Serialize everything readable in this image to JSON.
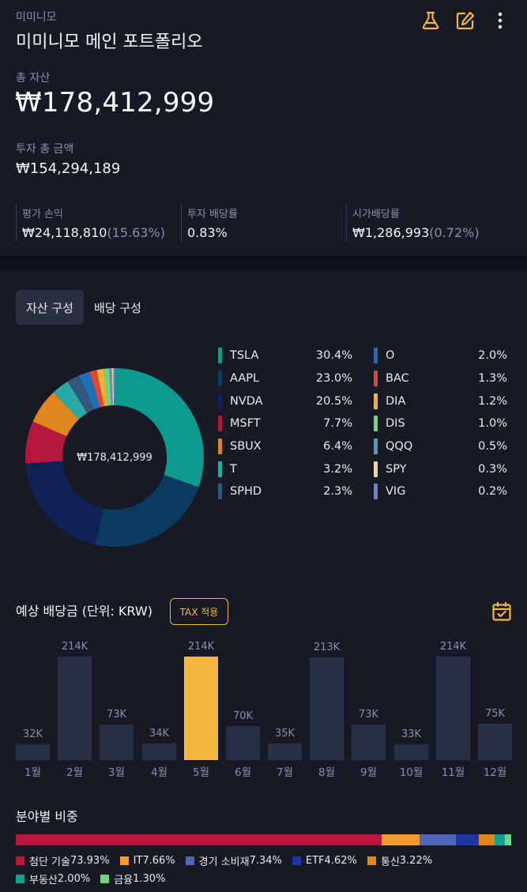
{
  "header": {
    "app_name": "미미니모",
    "title": "미미니모 메인 포트폴리오",
    "icons": [
      "flask-icon",
      "edit-icon",
      "more-vertical-icon"
    ]
  },
  "summary": {
    "total_label": "총 자산",
    "total_value": "₩178,412,999",
    "invested_label": "투자 총 금액",
    "invested_value": "₩154,294,189",
    "stats": [
      {
        "label": "평가 손익",
        "value": "₩24,118,810",
        "sub": "(15.63%)"
      },
      {
        "label": "투자 배당률",
        "value": "0.83%",
        "sub": ""
      },
      {
        "label": "시가배당률",
        "value": "₩1,286,993",
        "sub": "(0.72%)"
      }
    ]
  },
  "tabs": [
    {
      "label": "자산 구성",
      "active": true
    },
    {
      "label": "배당 구성",
      "active": false
    }
  ],
  "allocation": {
    "center_label": "₩178,412,999",
    "holdings": [
      {
        "name": "TSLA",
        "pct": "30.4%",
        "value": 30.4,
        "color": "#0f9a8e"
      },
      {
        "name": "AAPL",
        "pct": "23.0%",
        "value": 23.0,
        "color": "#0c3b61"
      },
      {
        "name": "NVDA",
        "pct": "20.5%",
        "value": 20.5,
        "color": "#0f2155"
      },
      {
        "name": "MSFT",
        "pct": "7.7%",
        "value": 7.7,
        "color": "#b5173f"
      },
      {
        "name": "SBUX",
        "pct": "6.4%",
        "value": 6.4,
        "color": "#df861d"
      },
      {
        "name": "T",
        "pct": "3.2%",
        "value": 3.2,
        "color": "#2aa9a5"
      },
      {
        "name": "SPHD",
        "pct": "2.3%",
        "value": 2.3,
        "color": "#34577a"
      },
      {
        "name": "O",
        "pct": "2.0%",
        "value": 2.0,
        "color": "#1f6fb8"
      },
      {
        "name": "BAC",
        "pct": "1.3%",
        "value": 1.3,
        "color": "#e0473a"
      },
      {
        "name": "DIA",
        "pct": "1.2%",
        "value": 1.2,
        "color": "#f2b233"
      },
      {
        "name": "DIS",
        "pct": "1.0%",
        "value": 1.0,
        "color": "#6ed67e"
      },
      {
        "name": "QQQ",
        "pct": "0.5%",
        "value": 0.5,
        "color": "#5d95b8"
      },
      {
        "name": "SPY",
        "pct": "0.3%",
        "value": 0.3,
        "color": "#f5d48c"
      },
      {
        "name": "VIG",
        "pct": "0.2%",
        "value": 0.2,
        "color": "#6c7fd0"
      }
    ]
  },
  "dividends": {
    "title": "예상 배당금 (단위: KRW)",
    "tax_button": "TAX 적용",
    "highlight_month_index": 4
  },
  "chart_data": {
    "type": "bar",
    "categories": [
      "1월",
      "2월",
      "3월",
      "4월",
      "5월",
      "6월",
      "7월",
      "8월",
      "9월",
      "10월",
      "11월",
      "12월"
    ],
    "values": [
      32,
      214,
      73,
      34,
      214,
      70,
      35,
      213,
      73,
      33,
      214,
      75
    ],
    "data_labels": [
      "32K",
      "214K",
      "73K",
      "34K",
      "214K",
      "70K",
      "35K",
      "213K",
      "73K",
      "33K",
      "214K",
      "75K"
    ],
    "title": "",
    "xlabel": "",
    "ylabel": "",
    "ylim": [
      0,
      214
    ],
    "grid": false
  },
  "sectors": {
    "title": "분야별 비중",
    "items": [
      {
        "name": "첨단 기술",
        "pct": "73.93%",
        "value": 73.93,
        "color": "#b5173f"
      },
      {
        "name": "IT",
        "pct": "7.66%",
        "value": 7.66,
        "color": "#f29b30"
      },
      {
        "name": "경기 소비재",
        "pct": "7.34%",
        "value": 7.34,
        "color": "#5166b8"
      },
      {
        "name": "ETF",
        "pct": "4.62%",
        "value": 4.62,
        "color": "#1d36a0"
      },
      {
        "name": "통신",
        "pct": "3.22%",
        "value": 3.22,
        "color": "#df861d"
      },
      {
        "name": "부동산",
        "pct": "2.00%",
        "value": 2.0,
        "color": "#14a090"
      },
      {
        "name": "금융",
        "pct": "1.30%",
        "value": 1.3,
        "color": "#6ed67e"
      }
    ]
  }
}
